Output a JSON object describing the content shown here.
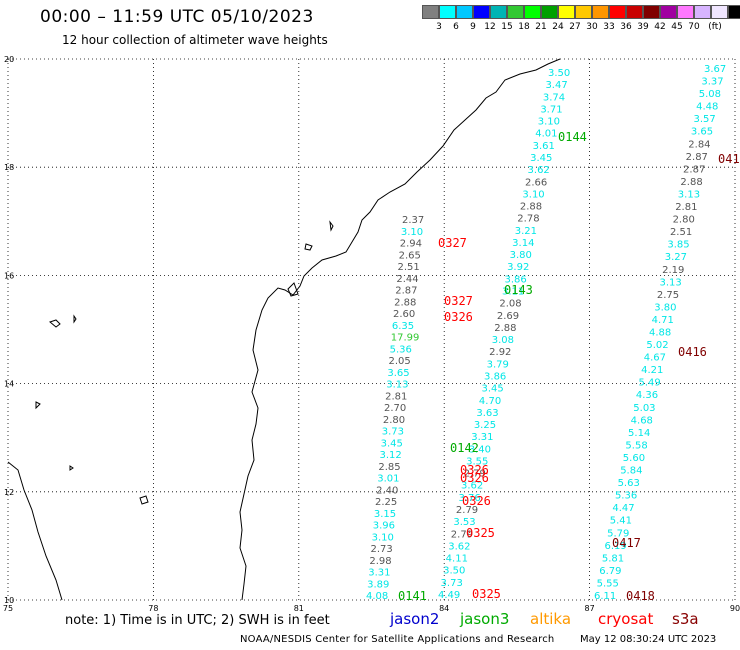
{
  "header": {
    "title": "00:00 – 11:59 UTC 05/10/2023",
    "subtitle": "12 hour collection of altimeter wave heights"
  },
  "colorbar": {
    "colors": [
      "#808080",
      "#00ffff",
      "#00c8ff",
      "#0000ff",
      "#00b4b4",
      "#32c832",
      "#00ff00",
      "#00a000",
      "#ffff00",
      "#ffc800",
      "#ff9600",
      "#ff0000",
      "#c80000",
      "#800000",
      "#a000a0",
      "#ff78ff",
      "#d7b4ff",
      "#f0e6ff",
      "#000000"
    ],
    "labels": [
      "3",
      "6",
      "9",
      "12",
      "15",
      "18",
      "21",
      "24",
      "27",
      "30",
      "33",
      "36",
      "39",
      "42",
      "45",
      "70",
      "(ft)"
    ]
  },
  "map": {
    "x_ticks": [
      "75",
      "78",
      "81",
      "84",
      "87",
      "90"
    ],
    "y_ticks": [
      "10",
      "12",
      "14",
      "16",
      "18",
      "20"
    ],
    "xlim": [
      75,
      90
    ],
    "ylim": [
      10,
      20
    ],
    "grid": "dotted",
    "coastline_color": "#000000"
  },
  "tracks": {
    "colors": {
      "jason3_high": "#00e6e6",
      "gray": "#555555",
      "green": "#00aa00",
      "red": "#ff0000",
      "darkred": "#800000",
      "cyan": "#00e6e6"
    },
    "track_A_values": [
      "3.50",
      "3.47",
      "3.74",
      "3.71",
      "3.10",
      "4.01",
      "3.61",
      "3.45",
      "3.62",
      "2.66",
      "3.10",
      "2.88",
      "2.78",
      "3.21",
      "3.14",
      "3.80",
      "3.92",
      "3.86",
      "3.11",
      "2.08",
      "2.69",
      "2.88",
      "3.08",
      "2.92",
      "3.79",
      "3.86",
      "3.45",
      "4.70",
      "3.63",
      "3.25",
      "3.31",
      "3.40",
      "3.55",
      "2.79",
      "3.62",
      "3.76",
      "2.79",
      "3.53",
      "2.79",
      "3.62",
      "4.11",
      "3.50",
      "3.73",
      "4.49"
    ],
    "track_B_values": [
      "2.37",
      "3.10",
      "2.94",
      "2.65",
      "2.51",
      "2.44",
      "2.87",
      "2.88",
      "2.60",
      "6.35",
      "17.99",
      "5.36",
      "2.05",
      "3.65",
      "3.13",
      "2.81",
      "2.70",
      "2.80",
      "3.73",
      "3.45",
      "3.12",
      "2.85",
      "3.01",
      "2.40",
      "2.25",
      "3.15",
      "3.96",
      "3.10",
      "2.73",
      "2.98",
      "3.31",
      "3.89",
      "4.08"
    ],
    "track_C_values": [
      "3.67",
      "3.37",
      "5.08",
      "4.48",
      "3.57",
      "3.65",
      "2.84",
      "2.87",
      "2.87",
      "2.88",
      "3.13",
      "2.81",
      "2.80",
      "2.51",
      "3.85",
      "3.27",
      "2.19",
      "3.13",
      "2.75",
      "3.80",
      "4.71",
      "4.88",
      "5.02",
      "4.67",
      "4.21",
      "5.49",
      "4.36",
      "5.03",
      "4.68",
      "5.14",
      "5.58",
      "5.60",
      "5.84",
      "5.63",
      "5.36",
      "4.47",
      "5.41",
      "5.79",
      "6.19",
      "5.81",
      "6.79",
      "5.55",
      "6.11"
    ],
    "time_labels": {
      "t0144": "0144",
      "t0327": "0327",
      "t0143": "0143",
      "t0327b": "0327",
      "t0326a": "0326",
      "t0416": "0416",
      "t0142": "0142",
      "t0326b": "0326",
      "t0326c": "0326",
      "t0326d": "0326",
      "t0325": "0325",
      "t0417": "0417",
      "t0141": "0141",
      "t0325b": "0325",
      "t0418": "0418",
      "t041x": "041"
    }
  },
  "footer": {
    "note": "note: 1) Time is in UTC; 2) SWH is in feet",
    "satellites": [
      {
        "name": "jason2",
        "color": "#0000cc"
      },
      {
        "name": "jason3",
        "color": "#00aa00"
      },
      {
        "name": "altika",
        "color": "#ff9900"
      },
      {
        "name": "cryosat",
        "color": "#ff0000"
      },
      {
        "name": "s3a",
        "color": "#880000"
      }
    ],
    "credit": "NOAA/NESDIS Center for Satellite Applications and Research",
    "timestamp": "May 12 08:30:24 UTC 2023"
  }
}
